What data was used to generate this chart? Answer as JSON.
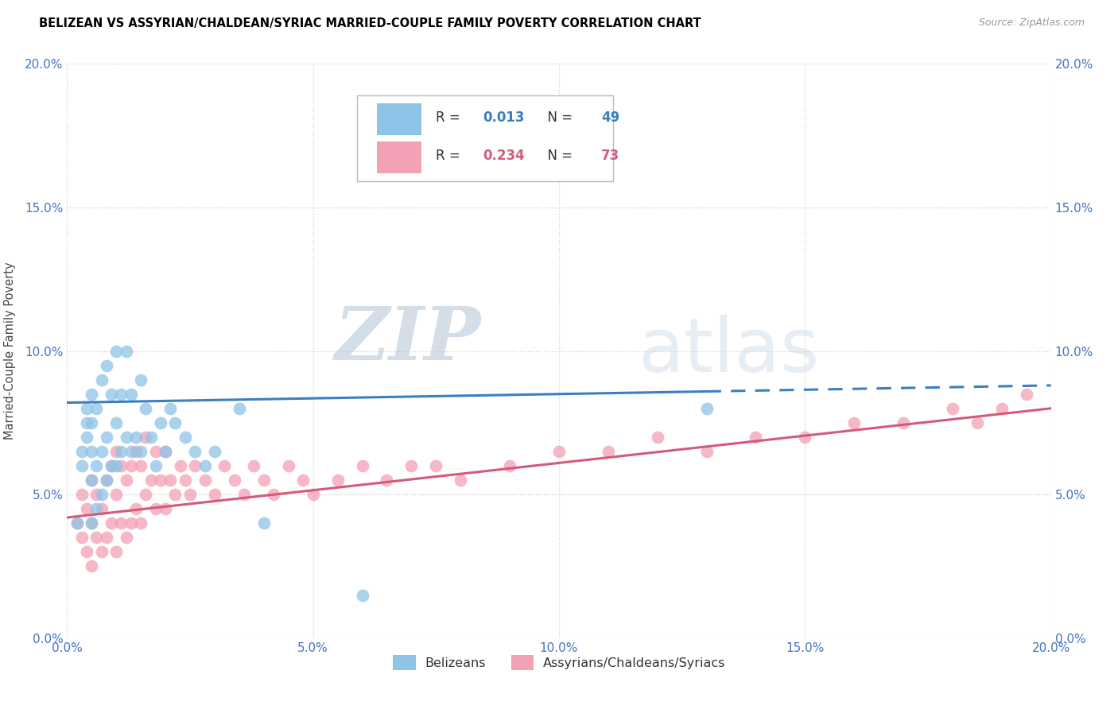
{
  "title": "BELIZEAN VS ASSYRIAN/CHALDEAN/SYRIAC MARRIED-COUPLE FAMILY POVERTY CORRELATION CHART",
  "source": "Source: ZipAtlas.com",
  "ylabel": "Married-Couple Family Poverty",
  "xlim": [
    0.0,
    0.2
  ],
  "ylim": [
    0.0,
    0.2
  ],
  "xticks": [
    0.0,
    0.05,
    0.1,
    0.15,
    0.2
  ],
  "yticks": [
    0.0,
    0.05,
    0.1,
    0.15,
    0.2
  ],
  "xticklabels": [
    "0.0%",
    "5.0%",
    "10.0%",
    "15.0%",
    "20.0%"
  ],
  "yticklabels": [
    "0.0%",
    "5.0%",
    "10.0%",
    "15.0%",
    "20.0%"
  ],
  "blue_R": 0.013,
  "blue_N": 49,
  "pink_R": 0.234,
  "pink_N": 73,
  "blue_color": "#8ec4e8",
  "pink_color": "#f4a0b5",
  "blue_line_color": "#3a7fc1",
  "pink_line_color": "#d45a7a",
  "legend_label_blue": "Belizeans",
  "legend_label_pink": "Assyrians/Chaldeans/Syriacs",
  "watermark_zip": "ZIP",
  "watermark_atlas": "atlas",
  "tick_color": "#4472c4",
  "blue_x": [
    0.002,
    0.003,
    0.003,
    0.004,
    0.004,
    0.004,
    0.005,
    0.005,
    0.005,
    0.005,
    0.005,
    0.006,
    0.006,
    0.006,
    0.007,
    0.007,
    0.007,
    0.008,
    0.008,
    0.008,
    0.009,
    0.009,
    0.01,
    0.01,
    0.01,
    0.011,
    0.011,
    0.012,
    0.012,
    0.013,
    0.013,
    0.014,
    0.015,
    0.015,
    0.016,
    0.017,
    0.018,
    0.019,
    0.02,
    0.021,
    0.022,
    0.024,
    0.026,
    0.028,
    0.03,
    0.035,
    0.04,
    0.06,
    0.13
  ],
  "blue_y": [
    0.04,
    0.06,
    0.065,
    0.07,
    0.075,
    0.08,
    0.04,
    0.055,
    0.065,
    0.075,
    0.085,
    0.045,
    0.06,
    0.08,
    0.05,
    0.065,
    0.09,
    0.055,
    0.07,
    0.095,
    0.06,
    0.085,
    0.06,
    0.075,
    0.1,
    0.065,
    0.085,
    0.07,
    0.1,
    0.065,
    0.085,
    0.07,
    0.065,
    0.09,
    0.08,
    0.07,
    0.06,
    0.075,
    0.065,
    0.08,
    0.075,
    0.07,
    0.065,
    0.06,
    0.065,
    0.08,
    0.04,
    0.015,
    0.08
  ],
  "pink_x": [
    0.002,
    0.003,
    0.003,
    0.004,
    0.004,
    0.005,
    0.005,
    0.005,
    0.006,
    0.006,
    0.007,
    0.007,
    0.008,
    0.008,
    0.009,
    0.009,
    0.01,
    0.01,
    0.01,
    0.011,
    0.011,
    0.012,
    0.012,
    0.013,
    0.013,
    0.014,
    0.014,
    0.015,
    0.015,
    0.016,
    0.016,
    0.017,
    0.018,
    0.018,
    0.019,
    0.02,
    0.02,
    0.021,
    0.022,
    0.023,
    0.024,
    0.025,
    0.026,
    0.028,
    0.03,
    0.032,
    0.034,
    0.036,
    0.038,
    0.04,
    0.042,
    0.045,
    0.048,
    0.05,
    0.055,
    0.06,
    0.065,
    0.07,
    0.075,
    0.08,
    0.09,
    0.1,
    0.11,
    0.12,
    0.13,
    0.14,
    0.15,
    0.16,
    0.17,
    0.18,
    0.185,
    0.19,
    0.195
  ],
  "pink_y": [
    0.04,
    0.035,
    0.05,
    0.03,
    0.045,
    0.025,
    0.04,
    0.055,
    0.035,
    0.05,
    0.03,
    0.045,
    0.035,
    0.055,
    0.04,
    0.06,
    0.03,
    0.05,
    0.065,
    0.04,
    0.06,
    0.035,
    0.055,
    0.04,
    0.06,
    0.045,
    0.065,
    0.04,
    0.06,
    0.05,
    0.07,
    0.055,
    0.045,
    0.065,
    0.055,
    0.045,
    0.065,
    0.055,
    0.05,
    0.06,
    0.055,
    0.05,
    0.06,
    0.055,
    0.05,
    0.06,
    0.055,
    0.05,
    0.06,
    0.055,
    0.05,
    0.06,
    0.055,
    0.05,
    0.055,
    0.06,
    0.055,
    0.06,
    0.06,
    0.055,
    0.06,
    0.065,
    0.065,
    0.07,
    0.065,
    0.07,
    0.07,
    0.075,
    0.075,
    0.08,
    0.075,
    0.08,
    0.085
  ],
  "blue_line_y_start": 0.082,
  "blue_line_y_end": 0.088,
  "blue_line_solid_end_x": 0.13,
  "pink_line_y_start": 0.042,
  "pink_line_y_end": 0.08
}
